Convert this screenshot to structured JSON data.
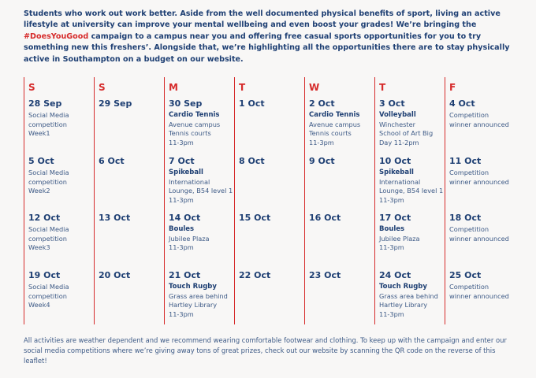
{
  "intro": {
    "before": "Students who work out work better. Aside from the well documented physical benefits of sport, living an active lifestyle at university can improve your mental wellbeing and even boost your grades! We’re bringing the ",
    "hashtag": "#DoesYouGood",
    "after": " campaign to a campus near you and offering free casual sports opportunities for you to try something new this freshers’. Alongside that, we’re highlighting all the opportunities there are to stay physically active in Southampton on a budget on our website."
  },
  "calendar": {
    "days": [
      "S",
      "S",
      "M",
      "T",
      "W",
      "T",
      "F"
    ],
    "weeks": [
      [
        {
          "date": "28 Sep",
          "lines": [
            "Social Media",
            "competition",
            "Week1"
          ]
        },
        {
          "date": "29 Sep"
        },
        {
          "date": "30 Sep",
          "title": "Cardio Tennis",
          "lines": [
            "Avenue campus",
            "Tennis courts",
            "11-3pm"
          ]
        },
        {
          "date": "1 Oct"
        },
        {
          "date": "2 Oct",
          "title": "Cardio Tennis",
          "lines": [
            "Avenue campus",
            "Tennis courts",
            "11-3pm"
          ]
        },
        {
          "date": "3 Oct",
          "title": "Volleyball",
          "lines": [
            "Winchester",
            "School of Art Big",
            "Day 11-2pm"
          ]
        },
        {
          "date": "4 Oct",
          "lines": [
            "Competition",
            "winner announced"
          ]
        }
      ],
      [
        {
          "date": "5 Oct",
          "lines": [
            "Social Media",
            "competition",
            "Week2"
          ]
        },
        {
          "date": "6 Oct"
        },
        {
          "date": "7 Oct",
          "title": "Spikeball",
          "lines": [
            "International",
            "Lounge, B54 level 1",
            "11-3pm"
          ]
        },
        {
          "date": "8 Oct"
        },
        {
          "date": "9 Oct"
        },
        {
          "date": "10 Oct",
          "title": "Spikeball",
          "lines": [
            "International",
            "Lounge, B54 level 1",
            "11-3pm"
          ]
        },
        {
          "date": "11 Oct",
          "lines": [
            "Competition",
            "winner announced"
          ]
        }
      ],
      [
        {
          "date": "12 Oct",
          "lines": [
            "Social Media",
            "competition",
            "Week3"
          ]
        },
        {
          "date": "13 Oct"
        },
        {
          "date": "14 Oct",
          "title": "Boules",
          "lines": [
            "Jubilee Plaza",
            "11-3pm"
          ]
        },
        {
          "date": "15 Oct"
        },
        {
          "date": "16 Oct"
        },
        {
          "date": "17 Oct",
          "title": "Boules",
          "lines": [
            "Jubilee Plaza",
            "11-3pm"
          ]
        },
        {
          "date": "18 Oct",
          "lines": [
            "Competition",
            "winner announced"
          ]
        }
      ],
      [
        {
          "date": "19 Oct",
          "lines": [
            "Social Media",
            "competition",
            "Week4"
          ]
        },
        {
          "date": "20 Oct"
        },
        {
          "date": "21 Oct",
          "title": "Touch Rugby",
          "lines": [
            "Grass area behind",
            "Hartley Library",
            "11-3pm"
          ]
        },
        {
          "date": "22 Oct"
        },
        {
          "date": "23 Oct"
        },
        {
          "date": "24 Oct",
          "title": "Touch Rugby",
          "lines": [
            "Grass area behind",
            "Hartley Library",
            "11-3pm"
          ]
        },
        {
          "date": "25 Oct",
          "lines": [
            "Competition",
            "winner announced"
          ]
        }
      ]
    ]
  },
  "footer": "All activities are weather dependent and we recommend wearing comfortable footwear and clothing. To keep up with the campaign and enter our social media competitions where we’re giving away tons of great prizes, check out our website by scanning the QR code on the reverse of this leaflet!"
}
